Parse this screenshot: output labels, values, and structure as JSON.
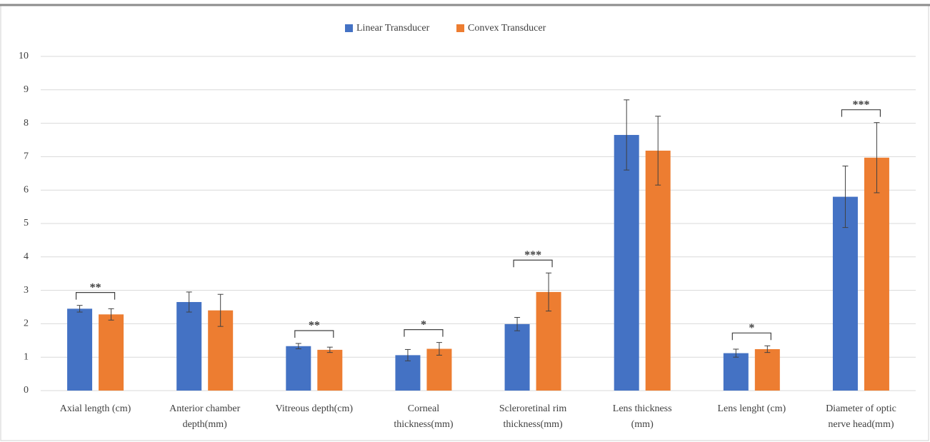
{
  "chart_data": {
    "type": "bar",
    "categories": [
      [
        "Axial length (cm)"
      ],
      [
        "Anterior chamber",
        "depth(mm)"
      ],
      [
        "Vitreous depth(cm)"
      ],
      [
        "Corneal",
        "thickness(mm)"
      ],
      [
        "Scleroretinal rim",
        "thickness(mm)"
      ],
      [
        "Lens thickness",
        "(mm)"
      ],
      [
        "Lens lenght (cm)"
      ],
      [
        "Diameter of optic",
        "nerve head(mm)"
      ]
    ],
    "series": [
      {
        "name": "Linear Transducer",
        "color": "#4472c4",
        "values": [
          2.45,
          2.65,
          1.33,
          1.06,
          1.99,
          7.65,
          1.12,
          5.8
        ],
        "errors": [
          0.1,
          0.3,
          0.08,
          0.17,
          0.2,
          1.05,
          0.12,
          0.92
        ]
      },
      {
        "name": "Convex Transducer",
        "color": "#ed7d31",
        "values": [
          2.28,
          2.4,
          1.22,
          1.25,
          2.95,
          7.18,
          1.24,
          6.97
        ],
        "errors": [
          0.17,
          0.48,
          0.08,
          0.19,
          0.57,
          1.03,
          0.1,
          1.05
        ]
      }
    ],
    "annotations": [
      {
        "category": 0,
        "label": "**"
      },
      {
        "category": 2,
        "label": "**"
      },
      {
        "category": 3,
        "label": "*"
      },
      {
        "category": 4,
        "label": "***"
      },
      {
        "category": 6,
        "label": "*"
      },
      {
        "category": 7,
        "label": "***"
      }
    ],
    "ylim": [
      0,
      10
    ],
    "yticks": [
      0,
      1,
      2,
      3,
      4,
      5,
      6,
      7,
      8,
      9,
      10
    ],
    "grid": true,
    "legend": "top"
  }
}
